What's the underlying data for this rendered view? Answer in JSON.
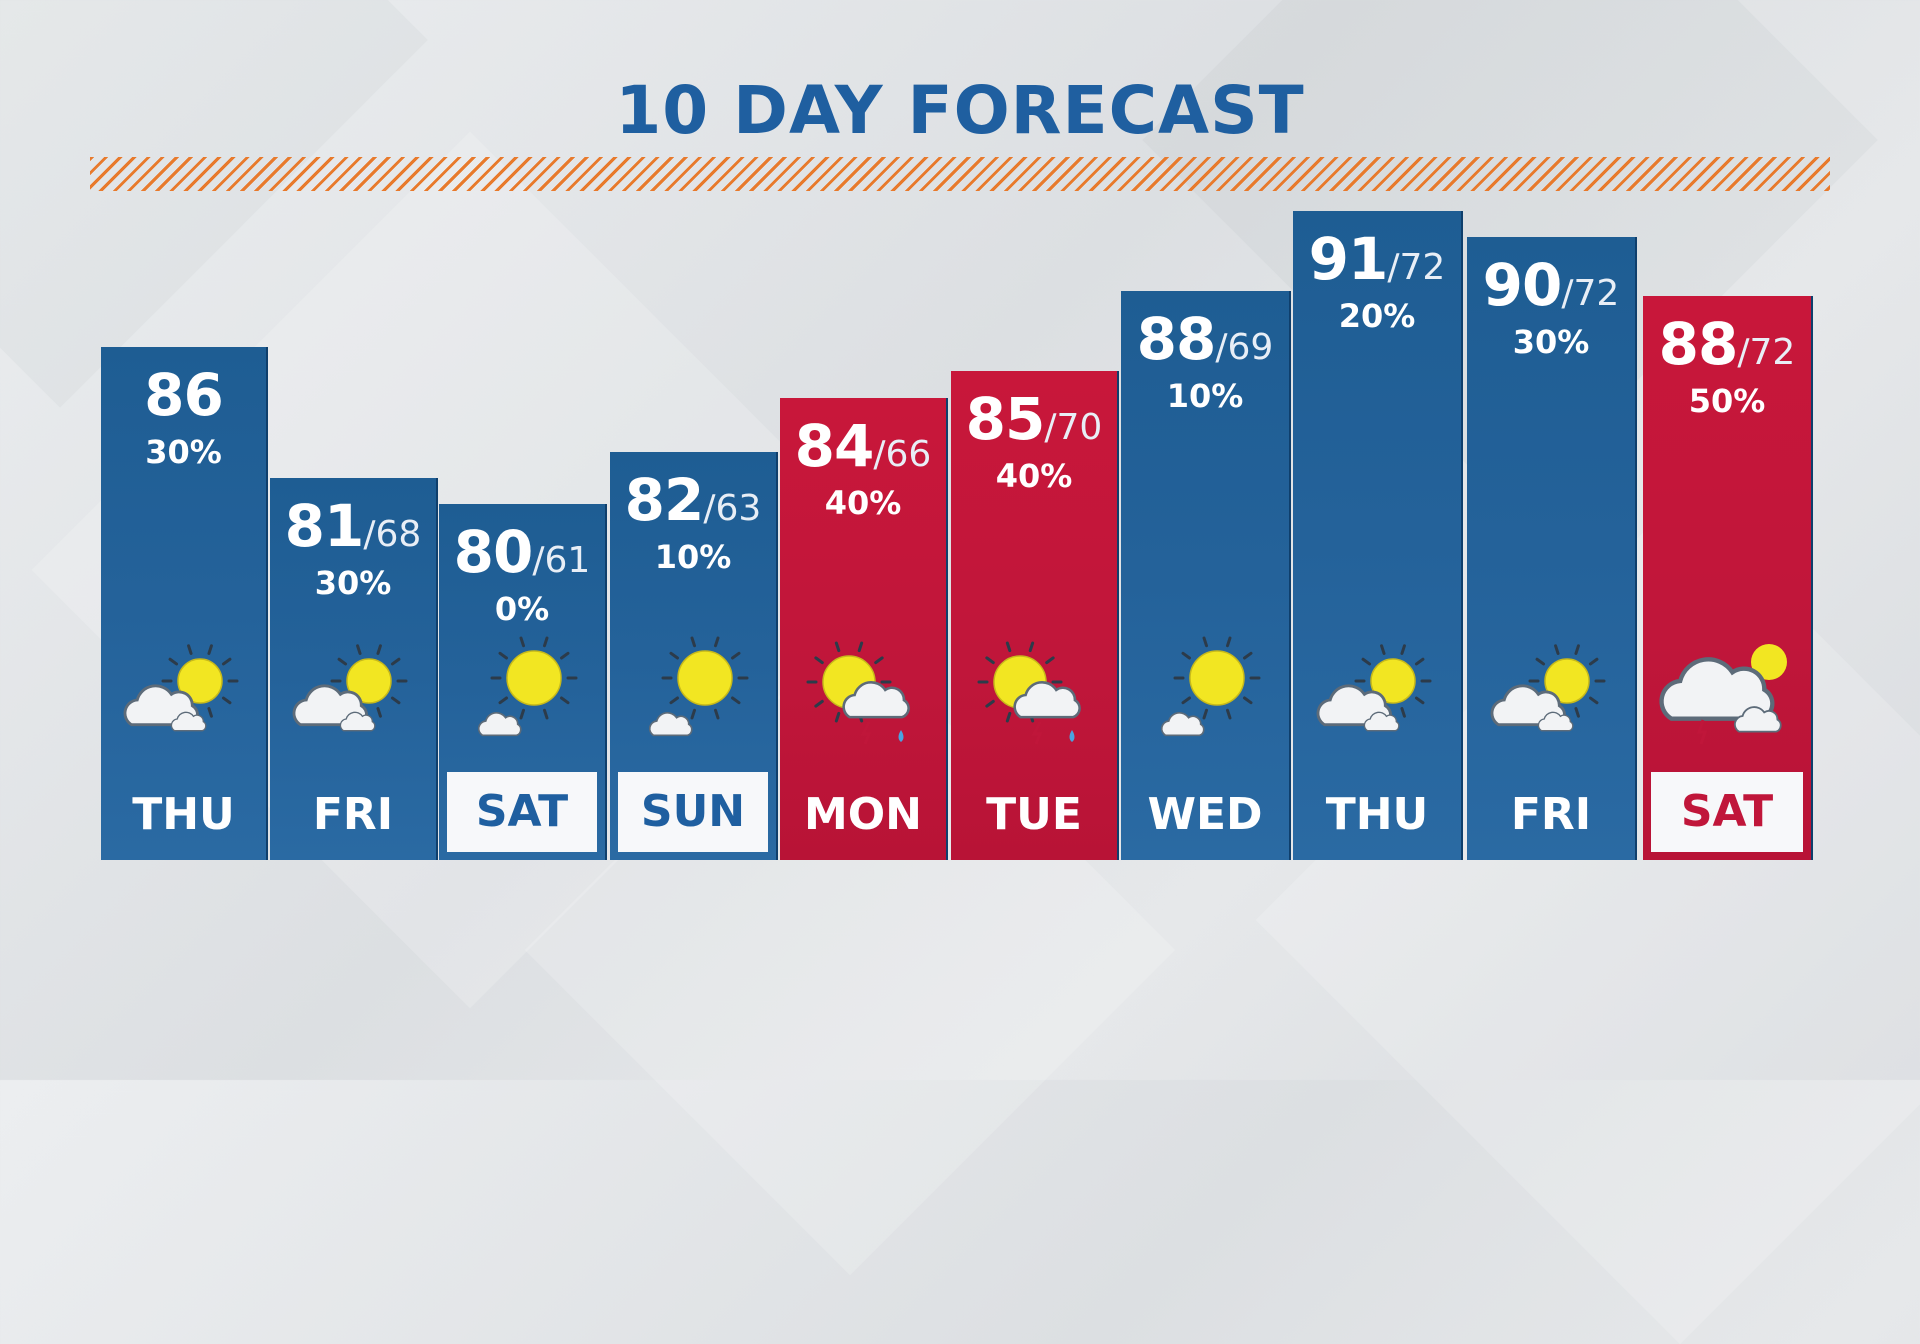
{
  "title": "10 DAY FORECAST",
  "colors": {
    "blue": "#1e5d93",
    "red": "#c0163a",
    "title": "#1f5fa0",
    "accent": "#e87a2c",
    "sun": "#f2e622"
  },
  "days": [
    {
      "day": "THU",
      "high": "86",
      "low": "",
      "precip": "30%",
      "icon": "partly-cloudy-icon",
      "color": "blue",
      "boxed": false
    },
    {
      "day": "FRI",
      "high": "81",
      "low": "68",
      "precip": "30%",
      "icon": "partly-cloudy-icon",
      "color": "blue",
      "boxed": false
    },
    {
      "day": "SAT",
      "high": "80",
      "low": "61",
      "precip": "0%",
      "icon": "mostly-sunny-icon",
      "color": "blue",
      "boxed": true
    },
    {
      "day": "SUN",
      "high": "82",
      "low": "63",
      "precip": "10%",
      "icon": "mostly-sunny-icon",
      "color": "blue",
      "boxed": true
    },
    {
      "day": "MON",
      "high": "84",
      "low": "66",
      "precip": "40%",
      "icon": "sun-thunderstorm-icon",
      "color": "red",
      "boxed": false
    },
    {
      "day": "TUE",
      "high": "85",
      "low": "70",
      "precip": "40%",
      "icon": "sun-thunderstorm-icon",
      "color": "red",
      "boxed": false
    },
    {
      "day": "WED",
      "high": "88",
      "low": "69",
      "precip": "10%",
      "icon": "mostly-sunny-icon",
      "color": "blue",
      "boxed": false
    },
    {
      "day": "THU",
      "high": "91",
      "low": "72",
      "precip": "20%",
      "icon": "partly-cloudy-icon",
      "color": "blue",
      "boxed": false
    },
    {
      "day": "FRI",
      "high": "90",
      "low": "72",
      "precip": "30%",
      "icon": "partly-cloudy-icon",
      "color": "blue",
      "boxed": false
    },
    {
      "day": "SAT",
      "high": "88",
      "low": "72",
      "precip": "50%",
      "icon": "cloudy-storm-icon",
      "color": "red",
      "boxed": true
    }
  ]
}
